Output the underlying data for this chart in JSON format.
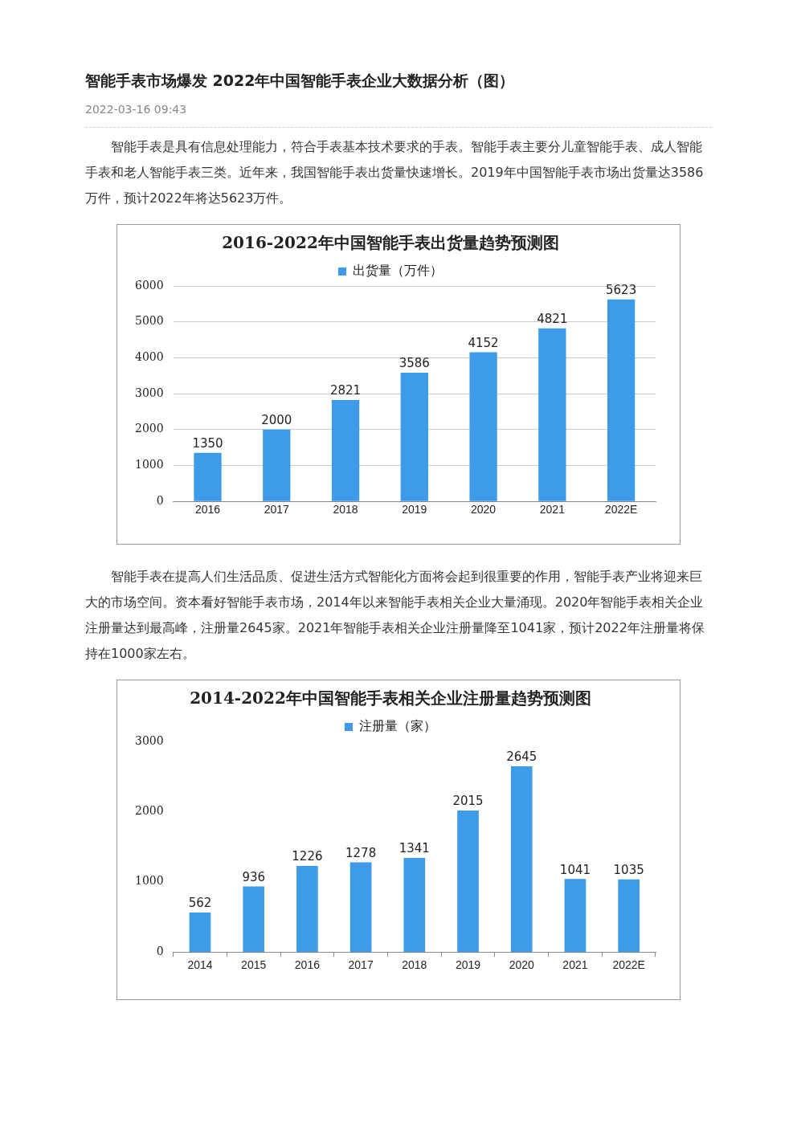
{
  "chart_data": [
    {
      "type": "other",
      "title": "智能手表市场爆发 2022年中国智能手表企业大数据分析（图）",
      "subtitle": "2022-03-16 09:43",
      "annotations": [
        "智能手表是具有信息处理能力，符合手表基本技术要求的手表。智能手表主要分儿童智能手表、成人智能手表和老人智能手表三类。近年来，我国智能手表出货量快速增长。2019年中国智能手表市场出货量达3586万件，预计2022年将达5623万件。"
      ]
    },
    {
      "type": "bar",
      "title": "2016-2022年中国智能手表出货量趋势预测图",
      "categories": [
        "2016",
        "2017",
        "2018",
        "2019",
        "2020",
        "2021",
        "2022E"
      ],
      "series": [
        {
          "name": "出货量（万件）",
          "color": "#3d9be9",
          "values": [
            1350,
            2000,
            2821,
            3586,
            4152,
            4821,
            5623
          ]
        }
      ],
      "ylim": [
        0,
        6000
      ],
      "yticks": [
        0,
        1000,
        2000,
        3000,
        4000,
        5000,
        6000
      ],
      "grid": "y",
      "legend": "top",
      "data_labels": true
    },
    {
      "type": "other",
      "annotations": [
        "智能手表在提高人们生活品质、促进生活方式智能化方面将会起到很重要的作用，智能手表产业将迎来巨大的市场空间。资本看好智能手表市场，2014年以来智能手表相关企业大量涌现。2020年智能手表相关企业注册量达到最高峰，注册量2645家。2021年智能手表相关企业注册量降至1041家，预计2022年注册量将保持在1000家左右。"
      ]
    },
    {
      "type": "bar",
      "title": "2014-2022年中国智能手表相关企业注册量趋势预测图",
      "categories": [
        "2014",
        "2015",
        "2016",
        "2017",
        "2018",
        "2019",
        "2020",
        "2021",
        "2022E"
      ],
      "series": [
        {
          "name": "注册量（家）",
          "color": "#3d9be9",
          "values": [
            562,
            936,
            1226,
            1278,
            1341,
            2015,
            2645,
            1041,
            1035
          ]
        }
      ],
      "ylim": [
        0,
        3000
      ],
      "yticks": [
        0,
        1000,
        2000,
        3000
      ],
      "legend": "top",
      "data_labels": true
    }
  ]
}
